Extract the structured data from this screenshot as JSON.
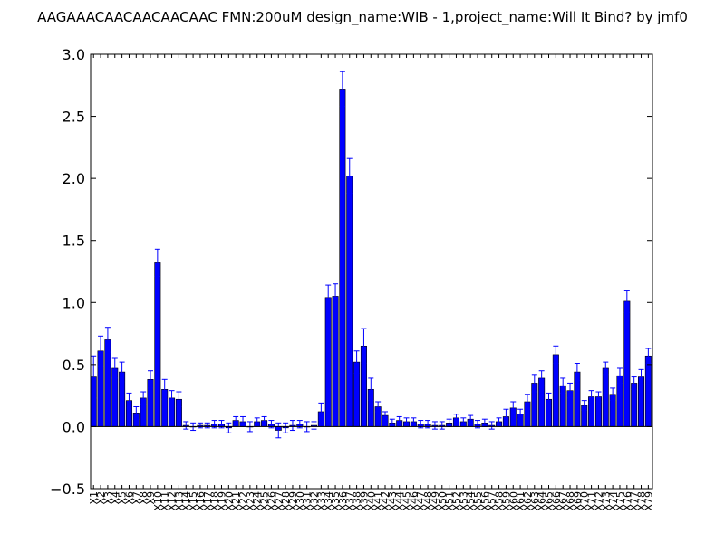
{
  "chart_data": {
    "type": "bar",
    "title": "AAGAAACAACAACAACAAC  FMN:200uM  design_name:WIB - 1,project_name:Will It Bind? by jmf0",
    "xlabel": "",
    "ylabel": "",
    "ylim": [
      -0.5,
      3.0
    ],
    "yticks": [
      "−0.5",
      "0.0",
      "0.5",
      "1.0",
      "1.5",
      "2.0",
      "2.5",
      "3.0"
    ],
    "grid": false,
    "colors": {
      "bar": "#0000ff",
      "error": "#0000ff",
      "axes": "#000000"
    },
    "categories": [
      "X1",
      "X2",
      "X3",
      "X4",
      "X5",
      "X6",
      "X7",
      "X8",
      "X9",
      "X10",
      "X11",
      "X12",
      "X13",
      "X14",
      "X15",
      "X16",
      "X17",
      "X18",
      "X19",
      "X20",
      "X21",
      "X22",
      "X23",
      "X24",
      "X25",
      "X26",
      "X27",
      "X28",
      "X29",
      "X30",
      "X31",
      "X32",
      "X33",
      "X34",
      "X35",
      "X36",
      "X37",
      "X38",
      "X39",
      "X40",
      "X41",
      "X42",
      "X43",
      "X44",
      "X45",
      "X46",
      "X47",
      "X48",
      "X49",
      "X50",
      "X51",
      "X52",
      "X53",
      "X54",
      "X55",
      "X56",
      "X57",
      "X58",
      "X59",
      "X60",
      "X61",
      "X62",
      "X63",
      "X64",
      "X65",
      "X66",
      "X67",
      "X68",
      "X69",
      "X70",
      "X71",
      "X72",
      "X73",
      "X74",
      "X75",
      "X76",
      "X77",
      "X78",
      "X79"
    ],
    "values": [
      0.4,
      0.61,
      0.7,
      0.47,
      0.44,
      0.21,
      0.11,
      0.23,
      0.38,
      1.32,
      0.3,
      0.23,
      0.22,
      0.01,
      0.0,
      0.01,
      0.01,
      0.02,
      0.02,
      -0.01,
      0.05,
      0.04,
      0.0,
      0.04,
      0.05,
      0.02,
      -0.03,
      -0.01,
      0.01,
      0.02,
      0.0,
      0.01,
      0.12,
      1.04,
      1.05,
      2.72,
      2.02,
      0.52,
      0.65,
      0.3,
      0.16,
      0.09,
      0.03,
      0.05,
      0.04,
      0.04,
      0.02,
      0.02,
      0.01,
      0.01,
      0.03,
      0.07,
      0.04,
      0.06,
      0.02,
      0.03,
      0.01,
      0.04,
      0.08,
      0.15,
      0.1,
      0.2,
      0.35,
      0.39,
      0.22,
      0.58,
      0.33,
      0.29,
      0.44,
      0.17,
      0.24,
      0.24,
      0.47,
      0.26,
      0.41,
      1.01,
      0.35,
      0.4,
      0.57
    ],
    "errors": [
      0.17,
      0.12,
      0.1,
      0.08,
      0.08,
      0.06,
      0.05,
      0.05,
      0.07,
      0.11,
      0.08,
      0.06,
      0.06,
      0.03,
      0.03,
      0.02,
      0.02,
      0.03,
      0.03,
      0.04,
      0.03,
      0.04,
      0.04,
      0.03,
      0.03,
      0.03,
      0.06,
      0.04,
      0.04,
      0.03,
      0.04,
      0.03,
      0.07,
      0.1,
      0.1,
      0.14,
      0.14,
      0.09,
      0.14,
      0.09,
      0.04,
      0.03,
      0.03,
      0.03,
      0.03,
      0.03,
      0.03,
      0.03,
      0.03,
      0.03,
      0.03,
      0.03,
      0.03,
      0.03,
      0.03,
      0.03,
      0.03,
      0.03,
      0.06,
      0.05,
      0.04,
      0.06,
      0.07,
      0.06,
      0.05,
      0.07,
      0.06,
      0.06,
      0.07,
      0.04,
      0.05,
      0.04,
      0.05,
      0.05,
      0.06,
      0.09,
      0.05,
      0.06,
      0.06
    ]
  }
}
